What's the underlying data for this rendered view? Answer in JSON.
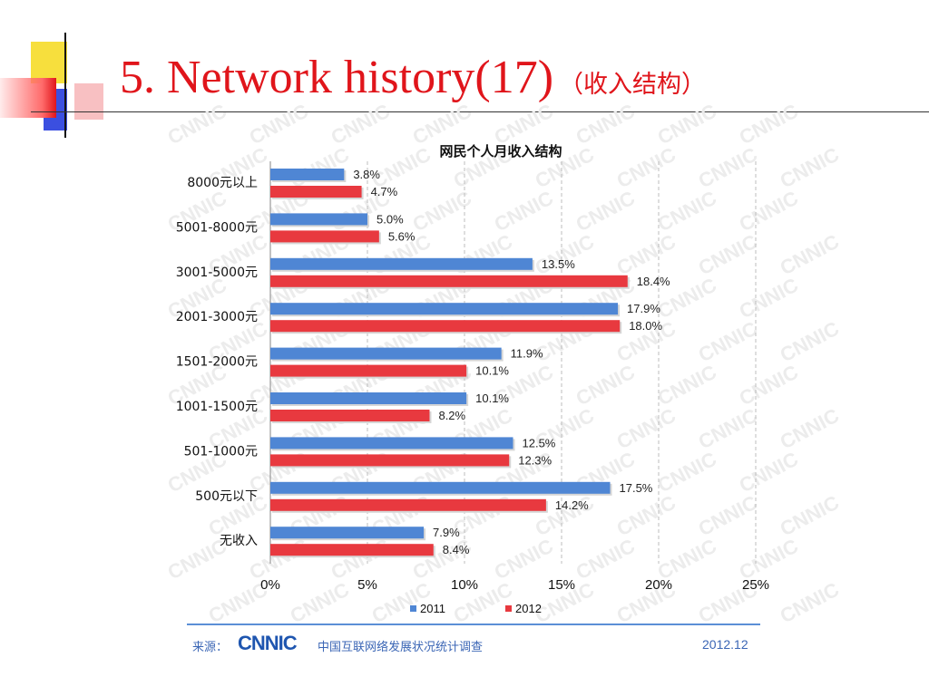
{
  "slide": {
    "title_en": "5. Network history(17)",
    "title_cn": "（收入结构）"
  },
  "colors": {
    "accent_red": "#e0151b",
    "series_2011": "#4f86d4",
    "series_2012": "#e8393f",
    "deco_yellow": "#f7df3d",
    "deco_blue": "#3b4fe0"
  },
  "chart_data": {
    "type": "bar",
    "orientation": "horizontal",
    "title": "网民个人月收入结构",
    "categories": [
      "8000元以上",
      "5001-8000元",
      "3001-5000元",
      "2001-3000元",
      "1501-2000元",
      "1001-1500元",
      "501-1000元",
      "500元以下",
      "无收入"
    ],
    "series": [
      {
        "name": "2011",
        "values": [
          3.8,
          5.0,
          13.5,
          17.9,
          11.9,
          10.1,
          12.5,
          17.5,
          7.9
        ]
      },
      {
        "name": "2012",
        "values": [
          4.7,
          5.6,
          18.4,
          18.0,
          10.1,
          8.2,
          12.3,
          14.2,
          8.4
        ]
      }
    ],
    "value_labels": [
      [
        "3.8%",
        "5.0%",
        "13.5%",
        "17.9%",
        "11.9%",
        "10.1%",
        "12.5%",
        "17.5%",
        "7.9%"
      ],
      [
        "4.7%",
        "5.6%",
        "18.4%",
        "18.0%",
        "10.1%",
        "8.2%",
        "12.3%",
        "14.2%",
        "8.4%"
      ]
    ],
    "xlim": [
      0,
      25
    ],
    "xticks": [
      0,
      5,
      10,
      15,
      20,
      25
    ],
    "xtick_labels": [
      "0%",
      "5%",
      "10%",
      "15%",
      "20%",
      "25%"
    ],
    "grid": "vertical dashed",
    "legend": "bottom"
  },
  "footer": {
    "source_label": "来源：",
    "logo_text": "CNNIC",
    "survey": "中国互联网络发展状况统计调查",
    "date": "2012.12"
  }
}
